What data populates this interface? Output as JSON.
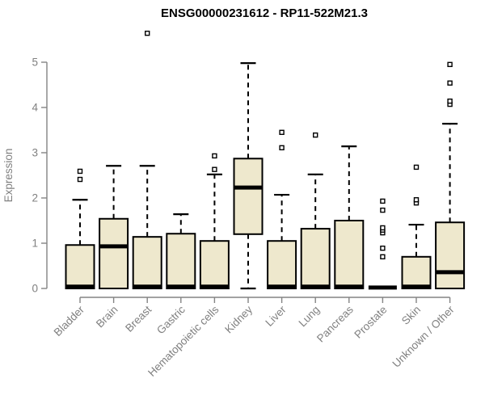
{
  "chart_data": {
    "type": "boxplot",
    "title": "ENSG00000231612 - RP11-522M21.3",
    "ylabel": "Expression",
    "xlabel": "",
    "ylim": [
      0,
      5
    ],
    "yticks": [
      0,
      1,
      2,
      3,
      4,
      5
    ],
    "grid": false,
    "legend": "none",
    "categories": [
      "Bladder",
      "Brain",
      "Breast",
      "Gastric",
      "Hematopoietic cells",
      "Kidney",
      "Liver",
      "Lung",
      "Pancreas",
      "Prostate",
      "Skin",
      "Unknown / Other"
    ],
    "boxes": [
      {
        "category": "Bladder",
        "low": 0,
        "q1": 0,
        "median": 0.04,
        "q3": 0.96,
        "high": 1.96,
        "outliers": [
          2.41,
          2.59
        ]
      },
      {
        "category": "Brain",
        "low": 0,
        "q1": 0,
        "median": 0.93,
        "q3": 1.54,
        "high": 2.71,
        "outliers": []
      },
      {
        "category": "Breast",
        "low": 0,
        "q1": 0,
        "median": 0.04,
        "q3": 1.14,
        "high": 2.71,
        "outliers": [
          5.64
        ]
      },
      {
        "category": "Gastric",
        "low": 0,
        "q1": 0,
        "median": 0.04,
        "q3": 1.21,
        "high": 1.64,
        "outliers": []
      },
      {
        "category": "Hematopoietic cells",
        "low": 0,
        "q1": 0,
        "median": 0.04,
        "q3": 1.05,
        "high": 2.52,
        "outliers": [
          2.63,
          2.93
        ]
      },
      {
        "category": "Kidney",
        "low": 0,
        "q1": 1.2,
        "median": 2.23,
        "q3": 2.87,
        "high": 4.98,
        "outliers": []
      },
      {
        "category": "Liver",
        "low": 0,
        "q1": 0,
        "median": 0.04,
        "q3": 1.05,
        "high": 2.07,
        "outliers": [
          3.11,
          3.45
        ]
      },
      {
        "category": "Lung",
        "low": 0,
        "q1": 0,
        "median": 0.04,
        "q3": 1.32,
        "high": 2.52,
        "outliers": [
          3.39
        ]
      },
      {
        "category": "Pancreas",
        "low": 0,
        "q1": 0,
        "median": 0.04,
        "q3": 1.5,
        "high": 3.14,
        "outliers": []
      },
      {
        "category": "Prostate",
        "low": 0,
        "q1": 0,
        "median": 0.02,
        "q3": 0,
        "high": 0,
        "outliers": [
          0.7,
          0.89,
          1.23,
          1.29,
          1.34,
          1.73,
          1.93
        ]
      },
      {
        "category": "Skin",
        "low": 0,
        "q1": 0,
        "median": 0.04,
        "q3": 0.7,
        "high": 1.41,
        "outliers": [
          1.89,
          1.96,
          2.68
        ]
      },
      {
        "category": "Unknown / Other",
        "low": 0,
        "q1": 0,
        "median": 0.36,
        "q3": 1.46,
        "high": 3.64,
        "outliers": [
          4.07,
          4.14,
          4.54,
          4.95
        ]
      }
    ],
    "colors": {
      "box_fill": "#EEE8CD",
      "box_border": "#000000",
      "median": "#000000",
      "whisker": "#000000",
      "outlier_stroke": "#000000",
      "outlier_fill": "#ffffff",
      "axis": "#848484",
      "tick_label": "#808080",
      "title": "#000000",
      "background": "#ffffff"
    }
  }
}
